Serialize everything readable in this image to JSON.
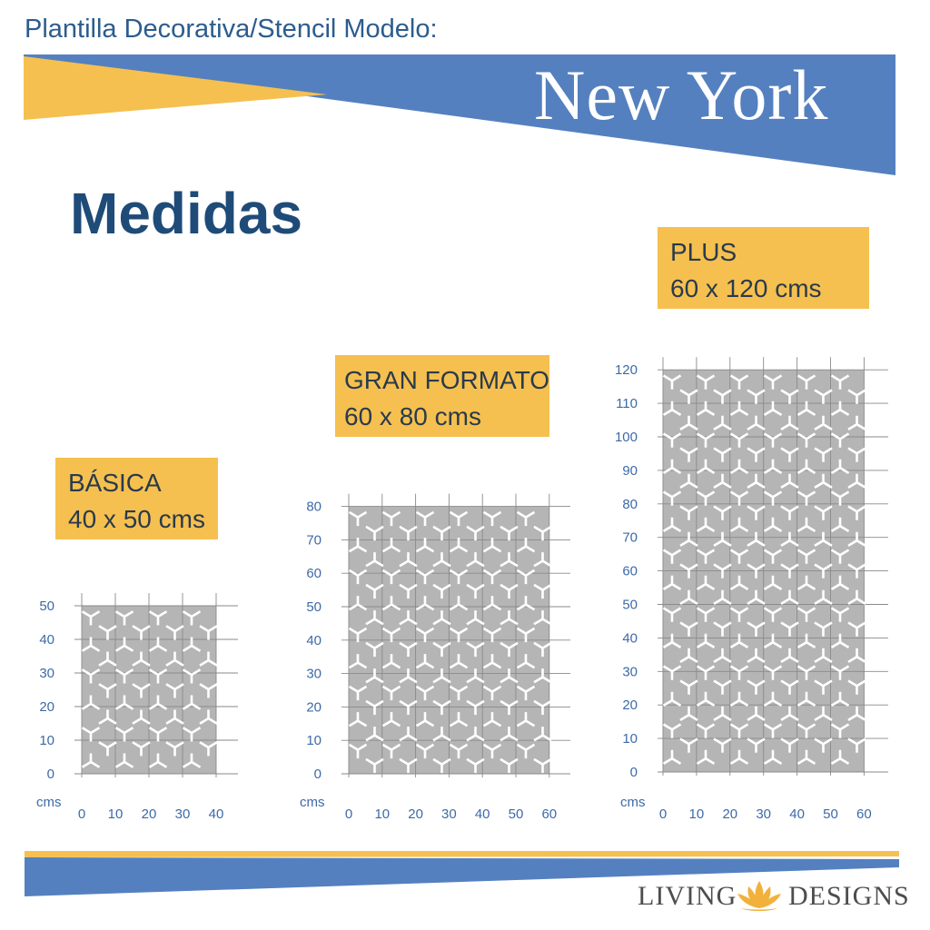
{
  "header": {
    "label": "Plantilla Decorativa/Stencil Modelo:",
    "city": "New York"
  },
  "heading": "Medidas",
  "colors": {
    "blue": "#5480c0",
    "yellow": "#f5c04f",
    "stencil_gray": "#b5b5b5",
    "axis_blue": "#3d6aa8",
    "heading_navy": "#1f4b78"
  },
  "unit_label": "cms",
  "sizes": [
    {
      "name": "BÁSICA",
      "dims": "40 x 50 cms",
      "width": 40,
      "height": 50,
      "x_ticks": [
        "0",
        "10",
        "20",
        "30",
        "40"
      ],
      "y_ticks": [
        "0",
        "10",
        "20",
        "30",
        "40",
        "50"
      ]
    },
    {
      "name": "GRAN FORMATO",
      "dims": "60 x 80 cms",
      "width": 60,
      "height": 80,
      "x_ticks": [
        "0",
        "10",
        "20",
        "30",
        "40",
        "50",
        "60"
      ],
      "y_ticks": [
        "0",
        "10",
        "20",
        "30",
        "40",
        "50",
        "60",
        "70",
        "80"
      ]
    },
    {
      "name": "PLUS",
      "dims": "60 x 120 cms",
      "width": 60,
      "height": 120,
      "x_ticks": [
        "0",
        "10",
        "20",
        "30",
        "40",
        "50",
        "60"
      ],
      "y_ticks": [
        "0",
        "10",
        "20",
        "30",
        "40",
        "50",
        "60",
        "70",
        "80",
        "90",
        "100",
        "110",
        "120"
      ]
    }
  ],
  "brand": {
    "word1": "LIVING",
    "word2": "DESIGNS",
    "icon": "lotus-icon"
  }
}
